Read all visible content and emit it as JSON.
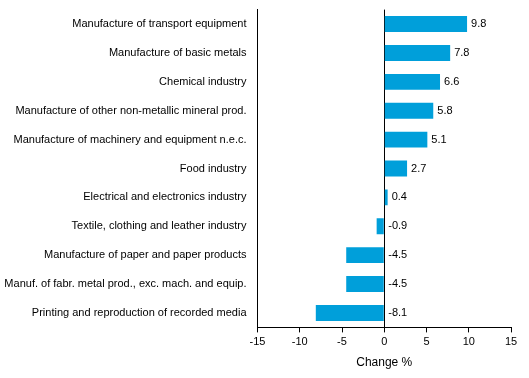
{
  "chart_data": {
    "type": "bar",
    "orientation": "horizontal",
    "categories": [
      "Manufacture of transport equipment",
      "Manufacture of basic metals",
      "Chemical industry",
      "Manufacture of other non-metallic mineral prod.",
      "Manufacture of machinery and equipment n.e.c.",
      "Food industry",
      "Electrical and electronics industry",
      "Textile, clothing and leather industry",
      "Manufacture of paper and paper products",
      "Manuf. of fabr. metal prod., exc. mach. and equip.",
      "Printing and reproduction of recorded media"
    ],
    "values": [
      9.8,
      7.8,
      6.6,
      5.8,
      5.1,
      2.7,
      0.4,
      -0.9,
      -4.5,
      -4.5,
      -8.1
    ],
    "color": "#009fda",
    "x_label": "Change %",
    "xlim": [
      -15,
      15
    ],
    "xticks": [
      -15,
      -10,
      -5,
      0,
      5,
      10,
      15
    ],
    "grid": false,
    "data_labels": true
  }
}
